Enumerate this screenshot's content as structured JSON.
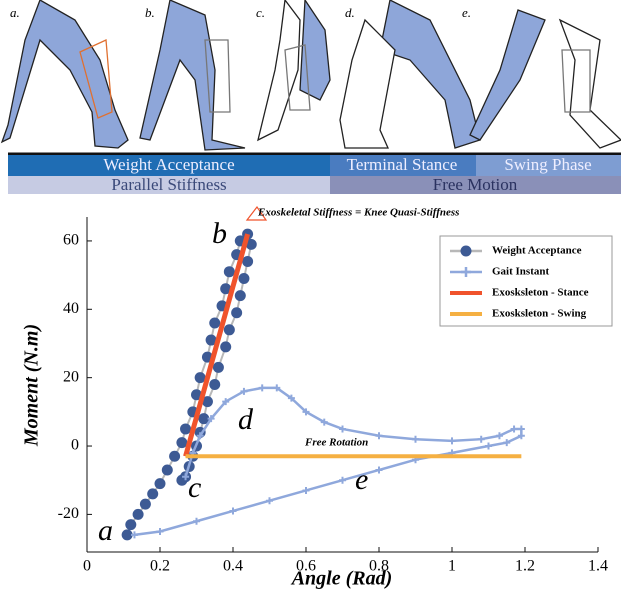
{
  "illustration": {
    "panels": [
      "a.",
      "b.",
      "c.",
      "d.",
      "e."
    ],
    "phase_bands": [
      "Weight Acceptance",
      "Terminal Stance",
      "Swing Phase"
    ],
    "mode_bands": [
      "Parallel Stiffness",
      "Free Motion"
    ]
  },
  "chart_data": {
    "type": "line",
    "xlabel": "Angle (Rad)",
    "ylabel": "Moment (N.m)",
    "xlim": [
      0,
      1.4
    ],
    "xticks": [
      0,
      0.2,
      0.4,
      0.6,
      0.8,
      1,
      1.2,
      1.4
    ],
    "ylim": [
      -31,
      67
    ],
    "yticks": [
      -20,
      0,
      20,
      40,
      60
    ],
    "legend": "upper right",
    "annotations": [
      "Exoskeletal Stiffness = Knee Quasi-Stiffness",
      "Free Rotation",
      "a",
      "b",
      "c",
      "d",
      "e"
    ],
    "series": [
      {
        "name": "Weight Acceptance",
        "color": "#3d5a94",
        "marker": "circle",
        "x": [
          0.11,
          0.12,
          0.14,
          0.16,
          0.18,
          0.2,
          0.22,
          0.24,
          0.26,
          0.27,
          0.29,
          0.3,
          0.31,
          0.33,
          0.34,
          0.35,
          0.37,
          0.38,
          0.39,
          0.41,
          0.42,
          0.44,
          0.45,
          0.44,
          0.43,
          0.42,
          0.41,
          0.39,
          0.38,
          0.36,
          0.35,
          0.33,
          0.32,
          0.31,
          0.3,
          0.29,
          0.28,
          0.27,
          0.26
        ],
        "values": [
          -26,
          -23,
          -20,
          -17,
          -14,
          -11,
          -7,
          -3,
          1,
          5,
          10,
          15,
          20,
          26,
          31,
          36,
          41,
          46,
          51,
          56,
          60,
          62,
          59,
          54,
          49,
          44,
          39,
          34,
          29,
          23,
          18,
          13,
          8,
          4,
          0,
          -3,
          -6,
          -9,
          -10
        ]
      },
      {
        "name": "Gait Instant",
        "color": "#8fa8dc",
        "marker": "plus",
        "x": [
          0.27,
          0.29,
          0.31,
          0.34,
          0.38,
          0.43,
          0.48,
          0.52,
          0.56,
          0.6,
          0.65,
          0.7,
          0.8,
          0.9,
          1.0,
          1.08,
          1.13,
          1.17,
          1.19,
          1.19,
          1.15,
          1.1,
          1.0,
          0.9,
          0.8,
          0.7,
          0.6,
          0.5,
          0.4,
          0.3,
          0.2,
          0.13
        ],
        "values": [
          -9,
          -2,
          3,
          8,
          13,
          16,
          17,
          17,
          14,
          10,
          7,
          5,
          3,
          2,
          1.5,
          2,
          3,
          5,
          5,
          3,
          1,
          0,
          -2,
          -4,
          -7,
          -10,
          -13,
          -16,
          -19,
          -22,
          -25,
          -26
        ]
      },
      {
        "name": "Exosksleton - Stance",
        "color": "#f0532c",
        "marker": "none",
        "x": [
          0.27,
          0.44
        ],
        "values": [
          -3,
          62
        ]
      },
      {
        "name": "Exosksleton - Swing",
        "color": "#f5b042",
        "marker": "none",
        "x": [
          0.27,
          1.19
        ],
        "values": [
          -3,
          -3
        ]
      }
    ]
  }
}
